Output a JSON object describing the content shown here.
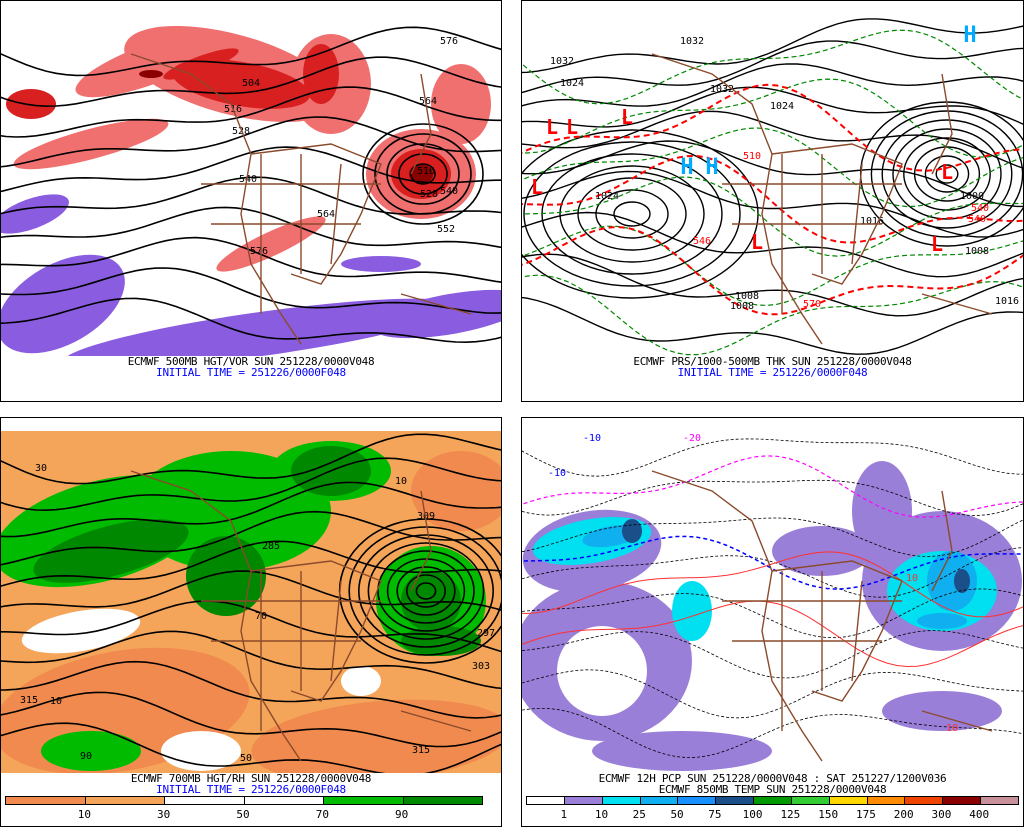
{
  "panels": {
    "top_left": {
      "caption": "ECMWF 500MB HGT/VOR SUN 251228/0000V048",
      "initial_time": "INITIAL TIME = 251226/0000F048",
      "contour_labels": [
        "504",
        "516",
        "528",
        "540",
        "564",
        "576",
        "516",
        "528",
        "540",
        "552",
        "564",
        "576"
      ]
    },
    "top_right": {
      "caption": "ECMWF PRS/1000-500MB THK SUN 251228/0000V048",
      "initial_time": "INITIAL TIME = 251226/0000F048",
      "contour_labels": [
        "1032",
        "1032",
        "1024",
        "1032",
        "1024",
        "1024",
        "1008",
        "1008",
        "1016",
        "1000",
        "1008",
        "1016",
        "540",
        "546",
        "570",
        "510",
        "540"
      ],
      "high_marker": "H",
      "low_marker": "L"
    },
    "bottom_left": {
      "caption": "ECMWF 700MB HGT/RH SUN 251228/0000V048",
      "initial_time": "INITIAL TIME = 251226/0000F048",
      "contour_labels": [
        "285",
        "309",
        "315",
        "315",
        "303",
        "297",
        "10",
        "50",
        "90",
        "30",
        "10",
        "70"
      ],
      "colorbar": {
        "colors": [
          "#f08a4e",
          "#f5a55a",
          "#ffffff",
          "#ffffff",
          "#00bb00",
          "#008800"
        ],
        "labels": [
          "10",
          "30",
          "50",
          "70",
          "90"
        ]
      }
    },
    "bottom_right": {
      "caption": "ECMWF 12H PCP SUN 251228/0000V048 : SAT 251227/1200V036",
      "caption2": "ECMWF 850MB TEMP SUN 251228/0000V048",
      "contour_labels": [
        "-10",
        "-10",
        "-20",
        "10",
        "10"
      ],
      "colorbar": {
        "colors": [
          "#ffffff",
          "#9a7fd8",
          "#00e0f0",
          "#10b0f0",
          "#1890ff",
          "#1a4f8a",
          "#009900",
          "#33cc33",
          "#ffd700",
          "#ff8c00",
          "#ee4400",
          "#8b0000",
          "#c8909a"
        ],
        "labels": [
          "1",
          "10",
          "25",
          "50",
          "75",
          "100",
          "125",
          "150",
          "175",
          "200",
          "300",
          "400"
        ]
      }
    }
  },
  "colors": {
    "height_contour": "#000000",
    "borders": "#8b4a2b",
    "thickness_cold": "#008800",
    "thickness_warm": "#ff0000",
    "high": "#00aaff",
    "low": "#ff0000",
    "vorticity_positive": "#e02020",
    "vorticity_negative": "#8a5ce0"
  }
}
